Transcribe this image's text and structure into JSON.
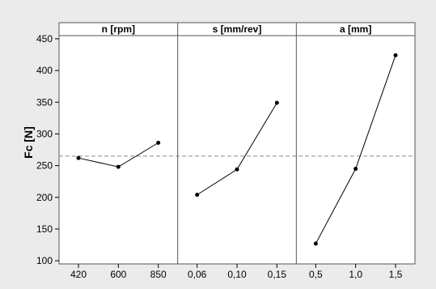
{
  "chart_data": {
    "type": "line",
    "title": "",
    "ylabel": "Fc [N]",
    "ylim": [
      95,
      455
    ],
    "yticks": [
      100,
      150,
      200,
      250,
      300,
      350,
      400,
      450
    ],
    "reference_line": 265,
    "grid": false,
    "panels": [
      {
        "label": "n [rpm]",
        "categories": [
          "420",
          "600",
          "850"
        ],
        "values": [
          262,
          248,
          286
        ]
      },
      {
        "label": "s [mm/rev]",
        "categories": [
          "0,06",
          "0,10",
          "0,15"
        ],
        "values": [
          204,
          244,
          349
        ]
      },
      {
        "label": "a [mm]",
        "categories": [
          "0,5",
          "1,0",
          "1,5"
        ],
        "values": [
          127,
          245,
          424
        ]
      }
    ],
    "colors": {
      "background": "#ebebeb",
      "plot": "#ffffff",
      "line": "#000000",
      "reference": "#8c8c8c"
    }
  }
}
